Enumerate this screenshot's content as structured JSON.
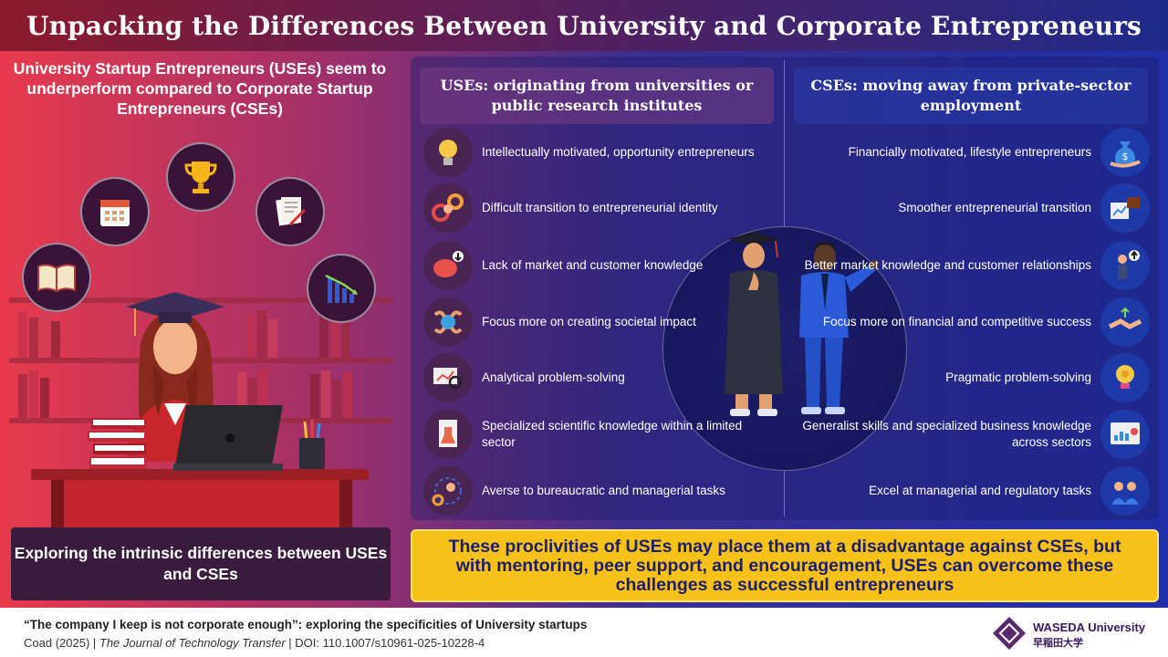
{
  "header": {
    "title": "Unpacking the Differences Between University and Corporate Entrepreneurs"
  },
  "left": {
    "intro": "University Startup Entrepreneurs (USEs) seem to underperform compared to Corporate Startup Entrepreneurs (CSEs)",
    "bottom": "Exploring the intrinsic differences between USEs and CSEs",
    "icons": [
      "book-icon",
      "calendar-icon",
      "trophy-icon",
      "document-icon",
      "declining-chart-icon"
    ]
  },
  "uses": {
    "heading": "USEs: originating from universities or public research institutes",
    "items": [
      {
        "text": "Intellectually motivated, opportunity entrepreneurs",
        "icon": "lightbulb-icon"
      },
      {
        "text": "Difficult transition to entrepreneurial identity",
        "icon": "gears-person-icon"
      },
      {
        "text": "Lack of market and customer knowledge",
        "icon": "brain-down-icon"
      },
      {
        "text": "Focus more on creating societal impact",
        "icon": "hands-globe-icon"
      },
      {
        "text": "Analytical problem-solving",
        "icon": "magnifier-chart-icon"
      },
      {
        "text": "Specialized scientific knowledge within a limited sector",
        "icon": "lab-icon"
      },
      {
        "text": "Averse to bureaucratic and managerial tasks",
        "icon": "cycle-manager-icon"
      }
    ]
  },
  "cses": {
    "heading": "CSEs: moving away from private-sector employment",
    "items": [
      {
        "text": "Financially motivated, lifestyle entrepreneurs",
        "icon": "money-bag-icon"
      },
      {
        "text": "Smoother entrepreneurial transition",
        "icon": "briefcase-chart-icon"
      },
      {
        "text": "Better market knowledge and customer relationships",
        "icon": "businessman-up-icon"
      },
      {
        "text": "Focus more on financial and competitive success",
        "icon": "handshake-growth-icon"
      },
      {
        "text": "Pragmatic problem-solving",
        "icon": "bulb-gear-icon"
      },
      {
        "text": "Generalist skills and specialized business knowledge across sectors",
        "icon": "tablet-chart-icon"
      },
      {
        "text": "Excel at managerial and regulatory tasks",
        "icon": "team-icon"
      }
    ]
  },
  "conclusion": "These proclivities of USEs may place them at a disadvantage against CSEs, but with mentoring, peer support, and encouragement, USEs can overcome these challenges as successful entrepreneurs",
  "footer": {
    "title": "“The company I keep is not corporate enough”: exploring the specificities of University startups",
    "authors": "Coad (2025) | ",
    "journal": "The Journal of Technology Transfer",
    "doi": " | DOI: 110.1007/s10961-025-10228-4",
    "university": "WASEDA University",
    "university_jp": "早稲田大学"
  },
  "colors": {
    "accent_yellow": "#f6c21a",
    "navy": "#1d1f6e",
    "uses_panel": "#4a2452",
    "cses_panel": "#1d3aa8"
  }
}
